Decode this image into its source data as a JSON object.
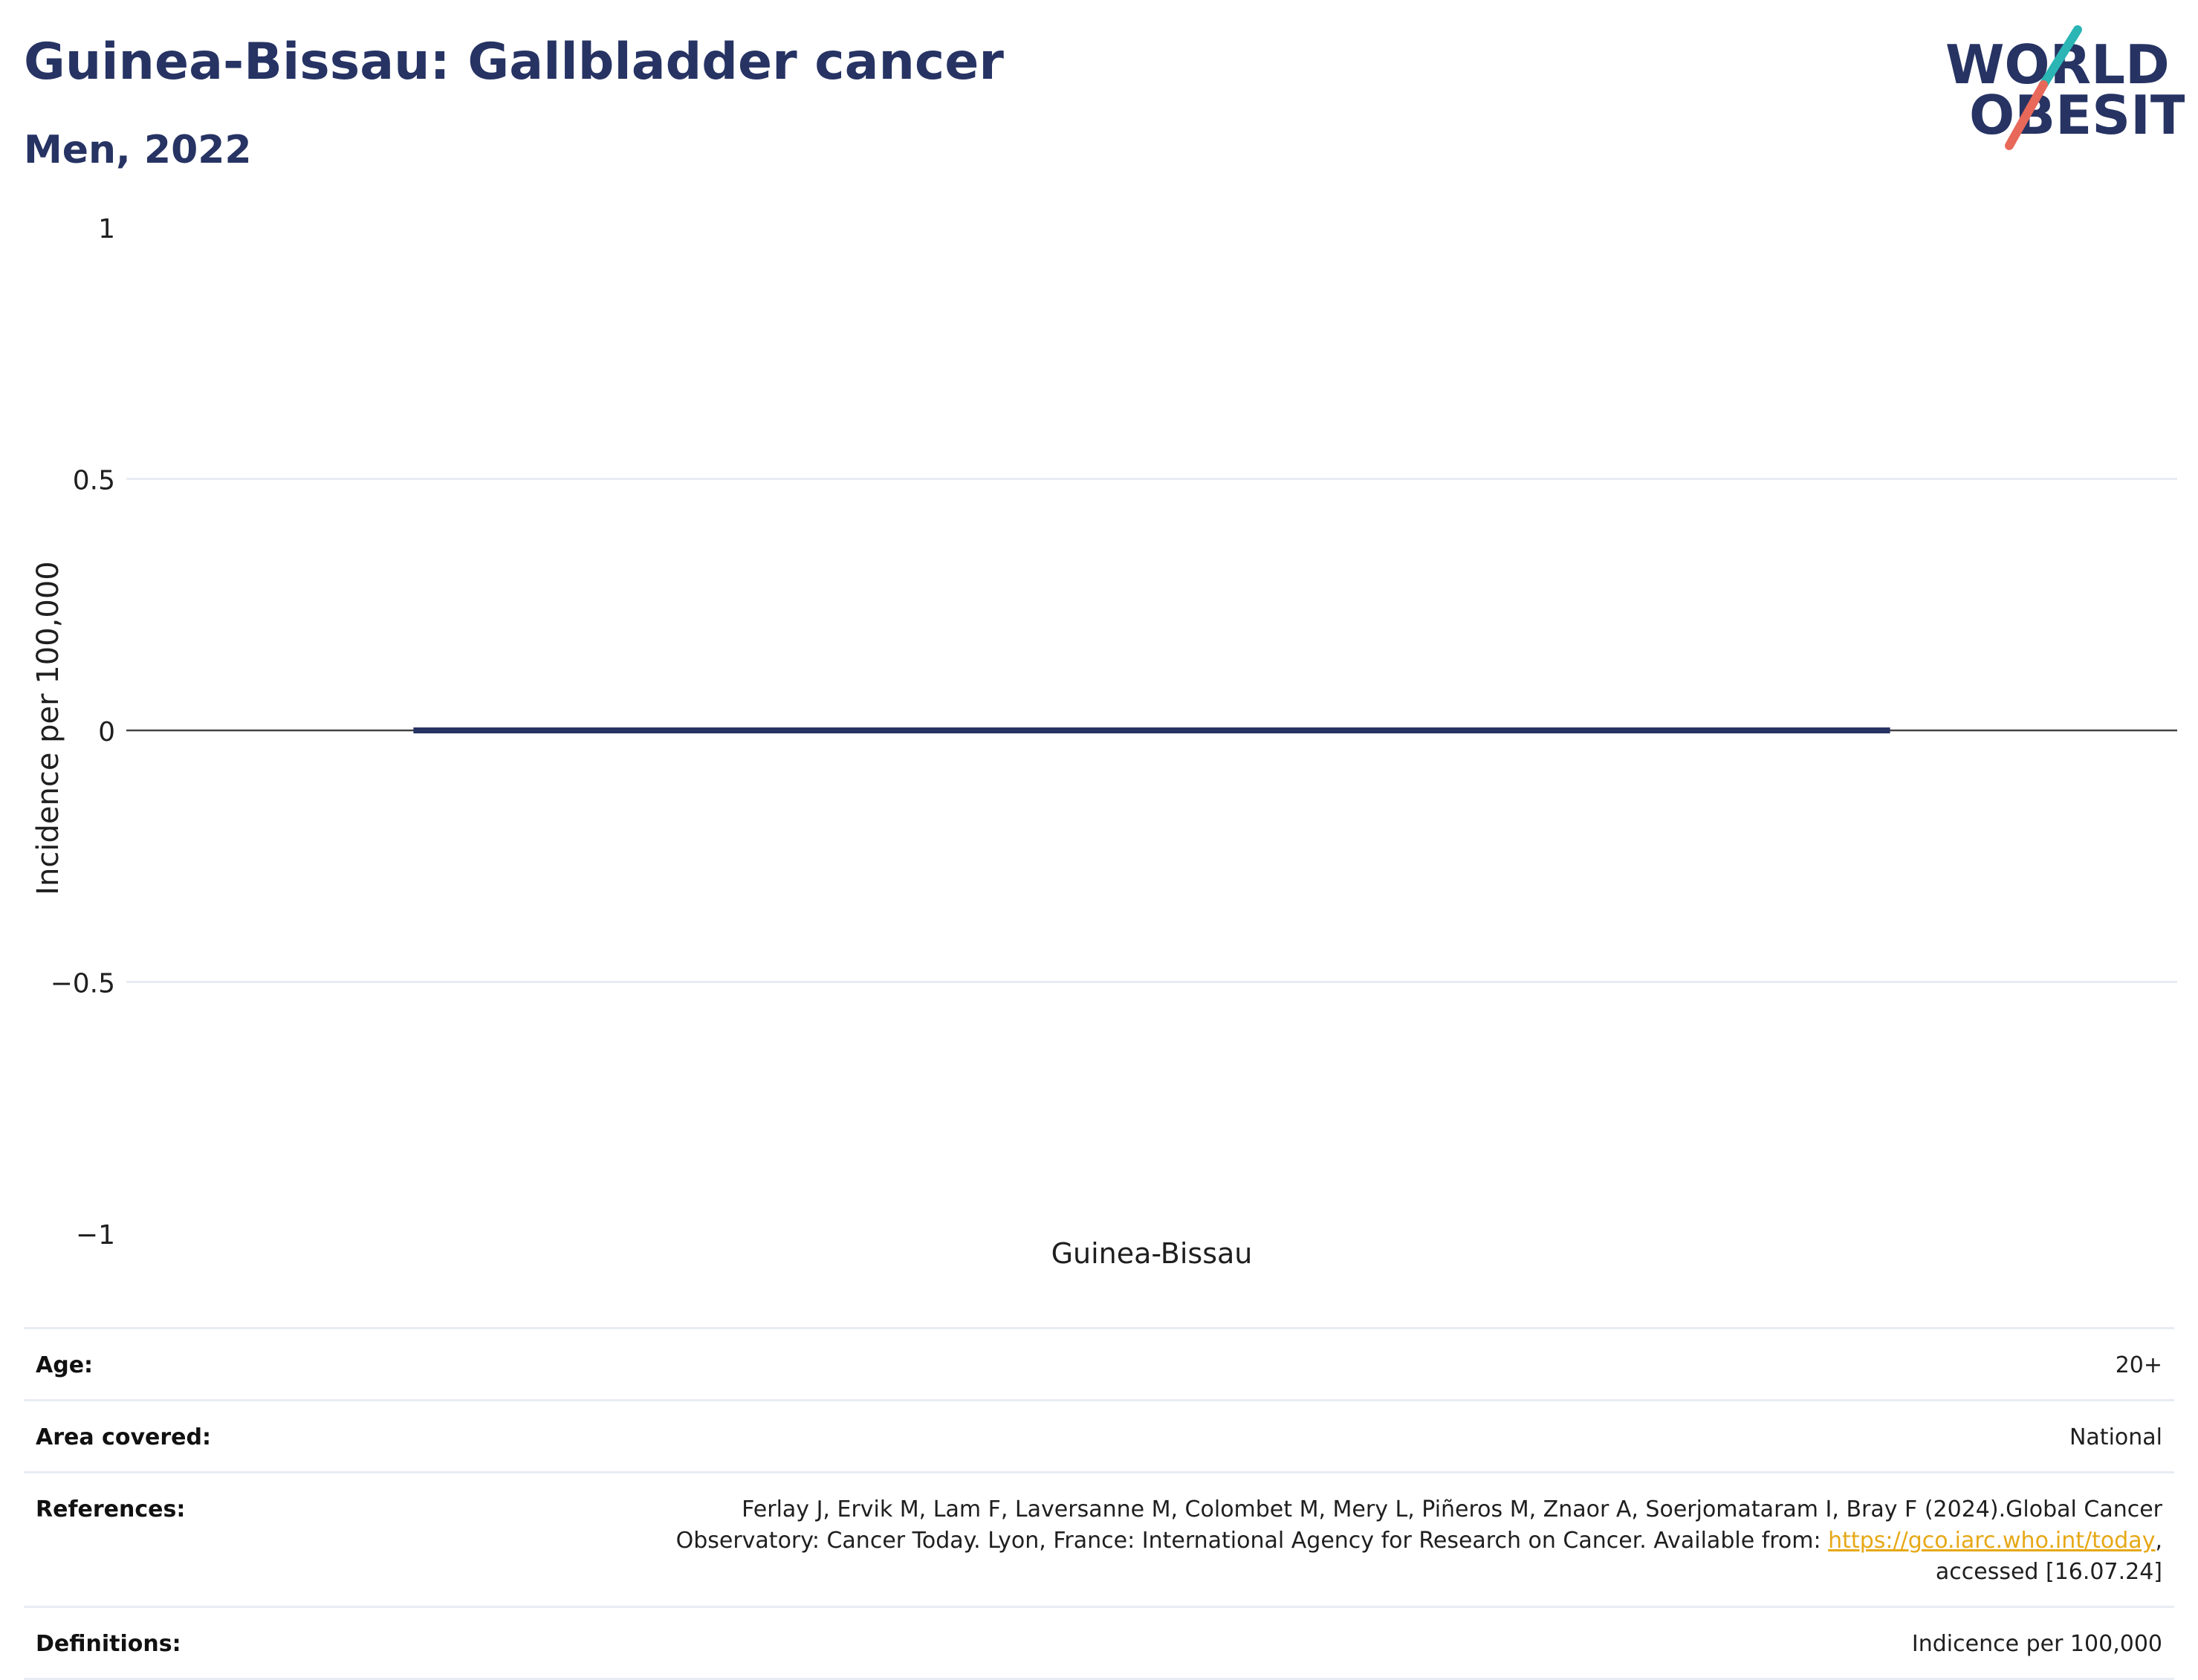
{
  "header": {
    "title": "Guinea-Bissau: Gallbladder cancer",
    "subtitle": "Men, 2022"
  },
  "logo": {
    "line1": "WORLD",
    "line2": "OBESITY",
    "icon": "world-obesity-logo",
    "colors": {
      "text": "#263363",
      "slash_top": "#2bb5b5",
      "slash_bottom": "#e8685a"
    }
  },
  "chart_data": {
    "type": "bar",
    "categories": [
      "Guinea-Bissau"
    ],
    "series": [
      {
        "values": [
          0
        ],
        "color": "#263363"
      }
    ],
    "ylabel": "Incidence per 100,000",
    "xlabel": "",
    "ylim": [
      -1,
      1
    ],
    "yticks": [
      1,
      0.5,
      0,
      -0.5,
      -1
    ],
    "ytick_labels": [
      "1",
      "0.5",
      "0",
      "−0.5",
      "−1"
    ],
    "grid": true
  },
  "info": {
    "rows": [
      {
        "label": "Age:",
        "value": "20+"
      },
      {
        "label": "Area covered:",
        "value": "National"
      },
      {
        "label": "References:",
        "value_before": "Ferlay J, Ervik M, Lam F, Laversanne M, Colombet M, Mery L, Piñeros M, Znaor A, Soerjomataram I, Bray F (2024).Global Cancer Observatory: Cancer Today. Lyon, France: International Agency for Research on Cancer. Available from: ",
        "link": "https://gco.iarc.who.int/today",
        "value_after": ", accessed [16.07.24]"
      },
      {
        "label": "Definitions:",
        "value": "Indicence per 100,000"
      }
    ]
  }
}
